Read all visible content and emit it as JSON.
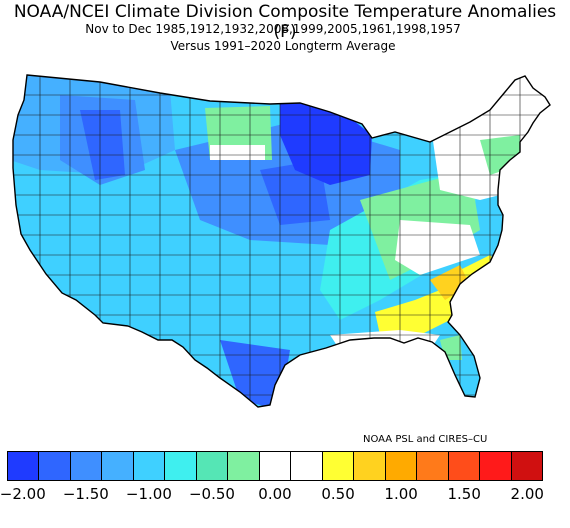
{
  "header": {
    "title": "NOAA/NCEI Climate Division Composite Temperature Anomalies (F)",
    "subtitle": "Nov to Dec  1985,1912,1932,2008,1999,2005,1961,1998,1957",
    "baseline": "Versus 1991–2020 Longterm Average"
  },
  "credit": "NOAA PSL and CIRES–CU",
  "colorbar": {
    "colors": [
      "#1f3bff",
      "#2f66ff",
      "#3f8fff",
      "#45b0ff",
      "#3fd0ff",
      "#3fefef",
      "#55e6b5",
      "#7ff0a0",
      "#ffffff",
      "#ffffff",
      "#ffff33",
      "#ffd21f",
      "#ffaa00",
      "#ff7a1a",
      "#ff4d1a",
      "#ff1a1a",
      "#d01010"
    ],
    "tick_labels": [
      "−2.00",
      "−1.50",
      "−1.00",
      "−0.50",
      "0.00",
      "0.50",
      "1.00",
      "1.50",
      "2.00"
    ]
  },
  "map": {
    "type": "choropleth",
    "region": "Contiguous United States climate divisions",
    "regional_anomalies": [
      {
        "region": "Upper Midwest (MN, WI, Upper MI)",
        "color": "#1f3bff"
      },
      {
        "region": "Northern Rockies (ID, MT)",
        "color": "#2f66ff"
      },
      {
        "region": "Pacific Northwest",
        "color": "#3f8fff"
      },
      {
        "region": "Great Plains & Midwest",
        "color": "#3f8fff"
      },
      {
        "region": "Southwest & Intermountain",
        "color": "#45b0ff"
      },
      {
        "region": "Texas Gulf Coast",
        "color": "#2f66ff"
      },
      {
        "region": "Mississippi Valley & Ohio Valley",
        "color": "#3fefef"
      },
      {
        "region": "Appalachians & Mid-Atlantic",
        "color": "#7ff0a0"
      },
      {
        "region": "Northeast & New England",
        "color": "#ffffff"
      },
      {
        "region": "Southeast (GA, SC, NC)",
        "color": "#ffff33"
      },
      {
        "region": "Florida Peninsula",
        "color": "#3fd0ff"
      }
    ]
  }
}
